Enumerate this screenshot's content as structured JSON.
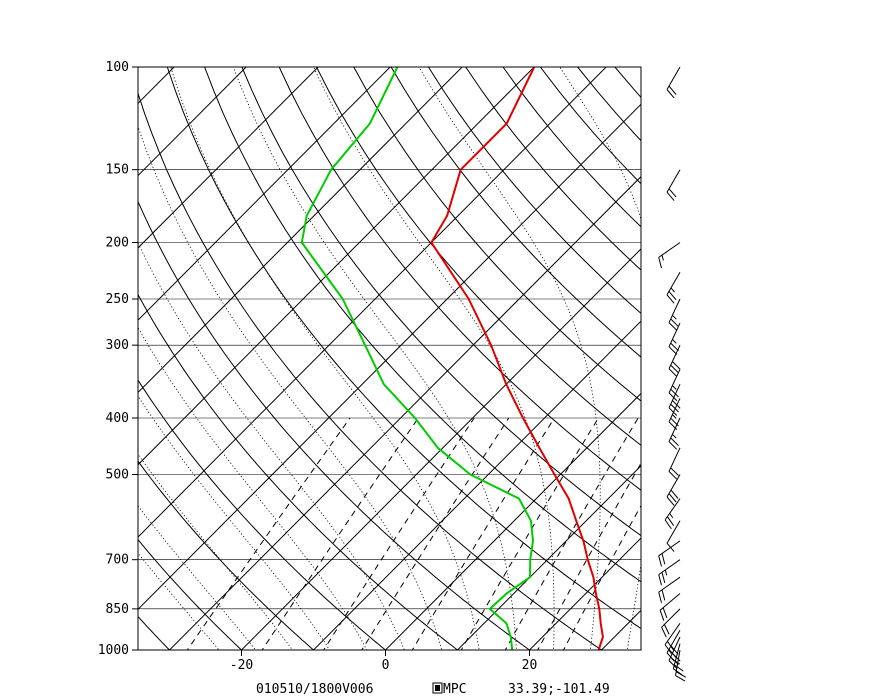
{
  "chart_data": {
    "type": "line",
    "title": "",
    "xlabel": "",
    "ylabel": "",
    "y_scale": "log-pressure",
    "xlim": [
      -34,
      35
    ],
    "ylim": [
      1000,
      100
    ],
    "pressure_ticks": [
      "100",
      "150",
      "200",
      "250",
      "300",
      "400",
      "500",
      "700",
      "850",
      "1000"
    ],
    "temperature_ticks": [
      "-20",
      "0",
      "20"
    ],
    "footer": {
      "valid_time": "010510/1800V006",
      "source": "MPC",
      "location": "33.39;-101.49"
    },
    "series": [
      {
        "color": "#e00000",
        "p": [
          1000,
          950,
          900,
          850,
          800,
          750,
          700,
          650,
          600,
          550,
          500,
          450,
          400,
          350,
          300,
          250,
          200,
          180,
          150,
          125,
          100
        ],
        "t": [
          29.6,
          28.4,
          26.2,
          24,
          21.4,
          18.8,
          15.6,
          12.4,
          8.6,
          4.5,
          -0.8,
          -6.6,
          -13,
          -20,
          -27.5,
          -37,
          -50,
          -51.5,
          -56,
          -56,
          -60
        ]
      },
      {
        "color": "#00cc00",
        "p": [
          1000,
          950,
          900,
          850,
          800,
          750,
          700,
          650,
          600,
          550,
          500,
          450,
          400,
          350,
          300,
          250,
          200,
          180,
          150,
          125,
          100
        ],
        "t": [
          17.6,
          15.6,
          13.1,
          8.8,
          9,
          10,
          7.6,
          5.4,
          2.3,
          -2.4,
          -12.5,
          -20.7,
          -28,
          -37,
          -45,
          -54.5,
          -68,
          -71,
          -74,
          -75,
          -79
        ]
      }
    ],
    "isotherms": [
      -130,
      -120,
      -110,
      -100,
      -90,
      -80,
      -70,
      -60,
      -50,
      -40,
      -30,
      -20,
      -10,
      0,
      10,
      20,
      30
    ],
    "dry_adiabats": [
      -40,
      -30,
      -20,
      -10,
      0,
      10,
      20,
      30,
      40,
      50,
      60,
      70,
      80,
      90,
      100,
      110,
      120,
      130,
      140,
      150,
      160,
      170,
      180
    ],
    "moist_adiabats": [
      -20,
      -15,
      -10,
      -5,
      0,
      5,
      10,
      15,
      20,
      25,
      30,
      35
    ],
    "mixing_ratios": [
      0.4,
      1,
      2,
      3,
      5,
      8,
      12,
      16,
      20
    ],
    "wind_barbs": [
      {
        "p": 1000,
        "dir": 190,
        "kt": 20
      },
      {
        "p": 975,
        "dir": 195,
        "kt": 25
      },
      {
        "p": 950,
        "dir": 205,
        "kt": 30
      },
      {
        "p": 925,
        "dir": 210,
        "kt": 30
      },
      {
        "p": 900,
        "dir": 215,
        "kt": 20
      },
      {
        "p": 850,
        "dir": 225,
        "kt": 20
      },
      {
        "p": 800,
        "dir": 230,
        "kt": 20
      },
      {
        "p": 750,
        "dir": 235,
        "kt": 20
      },
      {
        "p": 700,
        "dir": 235,
        "kt": 25
      },
      {
        "p": 650,
        "dir": 235,
        "kt": 20
      },
      {
        "p": 600,
        "dir": 210,
        "kt": 10
      },
      {
        "p": 550,
        "dir": 215,
        "kt": 25
      },
      {
        "p": 500,
        "dir": 210,
        "kt": 30
      },
      {
        "p": 450,
        "dir": 205,
        "kt": 20
      },
      {
        "p": 400,
        "dir": 205,
        "kt": 25
      },
      {
        "p": 370,
        "dir": 205,
        "kt": 25
      },
      {
        "p": 350,
        "dir": 205,
        "kt": 30
      },
      {
        "p": 330,
        "dir": 205,
        "kt": 25
      },
      {
        "p": 300,
        "dir": 205,
        "kt": 30
      },
      {
        "p": 275,
        "dir": 205,
        "kt": 25
      },
      {
        "p": 250,
        "dir": 205,
        "kt": 25
      },
      {
        "p": 225,
        "dir": 210,
        "kt": 25
      },
      {
        "p": 200,
        "dir": 235,
        "kt": 15
      },
      {
        "p": 150,
        "dir": 210,
        "kt": 20
      },
      {
        "p": 100,
        "dir": 210,
        "kt": 20
      }
    ]
  }
}
